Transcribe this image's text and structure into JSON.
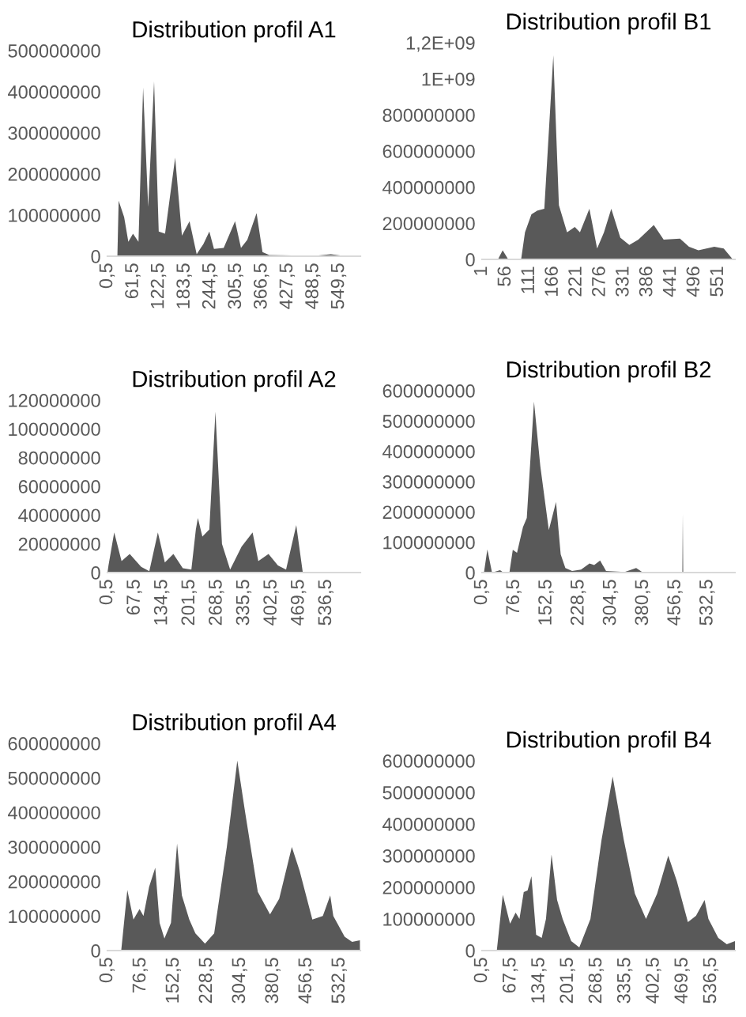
{
  "chart_data": [
    {
      "type": "area",
      "title": "Distribution profil A1",
      "color": "#595959",
      "xlim": [
        0.5,
        600
      ],
      "ylim": [
        0,
        500000000
      ],
      "yticks": [
        0,
        100000000,
        200000000,
        300000000,
        400000000,
        500000000
      ],
      "xticks": [
        {
          "value": 0.5,
          "label": "0,5"
        },
        {
          "value": 61.5,
          "label": "61,5"
        },
        {
          "value": 122.5,
          "label": "122,5"
        },
        {
          "value": 183.5,
          "label": "183,5"
        },
        {
          "value": 244.5,
          "label": "244,5"
        },
        {
          "value": 305.5,
          "label": "305,5"
        },
        {
          "value": 366.5,
          "label": "366,5"
        },
        {
          "value": 427.5,
          "label": "427,5"
        },
        {
          "value": 488.5,
          "label": "488,5"
        },
        {
          "value": 549.5,
          "label": "549,5"
        }
      ],
      "x": [
        0.5,
        24,
        27,
        40,
        50,
        61,
        74,
        85,
        97,
        111,
        122,
        137,
        161,
        177,
        195,
        212,
        228,
        242,
        253,
        276,
        303,
        317,
        332,
        354,
        368,
        384,
        491,
        530,
        560,
        600
      ],
      "values": [
        0,
        0,
        135000000,
        95000000,
        35000000,
        55000000,
        35000000,
        410000000,
        120000000,
        425000000,
        60000000,
        55000000,
        240000000,
        50000000,
        85000000,
        5000000,
        30000000,
        60000000,
        18000000,
        20000000,
        85000000,
        20000000,
        40000000,
        105000000,
        10000000,
        3000000,
        1000000,
        5000000,
        1000000,
        0
      ]
    },
    {
      "type": "area",
      "title": "Distribution profil B1",
      "color": "#595959",
      "xlim": [
        1,
        590
      ],
      "ylim": [
        0,
        1200000000
      ],
      "yticks": [
        0,
        200000000,
        400000000,
        600000000,
        800000000,
        {
          "value": 1000000000,
          "label": "1E+09"
        },
        {
          "value": 1200000000,
          "label": "1,2E+09"
        }
      ],
      "xticks": [
        1,
        56,
        111,
        166,
        221,
        276,
        331,
        386,
        441,
        496,
        551
      ],
      "x": [
        1,
        38,
        49,
        62,
        92,
        101,
        116,
        130,
        146,
        167,
        180,
        199,
        217,
        229,
        251,
        269,
        285,
        302,
        323,
        344,
        365,
        401,
        424,
        462,
        483,
        505,
        542,
        564,
        585,
        590
      ],
      "values": [
        0,
        0,
        50000000,
        0,
        0,
        150000000,
        250000000,
        270000000,
        280000000,
        1130000000,
        300000000,
        150000000,
        180000000,
        150000000,
        280000000,
        60000000,
        150000000,
        280000000,
        120000000,
        80000000,
        110000000,
        190000000,
        110000000,
        115000000,
        70000000,
        50000000,
        70000000,
        60000000,
        0,
        0
      ]
    },
    {
      "type": "area",
      "title": "Distribution profil A2",
      "color": "#595959",
      "xlim": [
        0.5,
        620
      ],
      "ylim": [
        0,
        120000000
      ],
      "yticks": [
        0,
        20000000,
        40000000,
        60000000,
        80000000,
        100000000,
        120000000
      ],
      "xticks": [
        {
          "value": 0.5,
          "label": "0,5"
        },
        {
          "value": 67.5,
          "label": "67,5"
        },
        {
          "value": 134.5,
          "label": "134,5"
        },
        {
          "value": 201.5,
          "label": "201,5"
        },
        {
          "value": 268.5,
          "label": "268,5"
        },
        {
          "value": 335.5,
          "label": "335,5"
        },
        {
          "value": 402.5,
          "label": "402,5"
        },
        {
          "value": 469.5,
          "label": "469,5"
        },
        {
          "value": 536.5,
          "label": "536,5"
        }
      ],
      "x": [
        0.5,
        3,
        17,
        35,
        55,
        83,
        103,
        124,
        141,
        162,
        185,
        206,
        217,
        222,
        233,
        250,
        265,
        281,
        301,
        329,
        356,
        370,
        395,
        418,
        438,
        463,
        479,
        620
      ],
      "values": [
        0,
        5000000,
        28000000,
        8000000,
        13000000,
        4000000,
        1000000,
        28000000,
        7000000,
        13000000,
        3000000,
        2000000,
        30000000,
        38000000,
        25000000,
        30000000,
        112000000,
        20000000,
        2000000,
        18000000,
        28000000,
        8000000,
        13000000,
        5000000,
        2000000,
        33000000,
        0,
        0
      ]
    },
    {
      "type": "area",
      "title": "Distribution profil B2",
      "color": "#595959",
      "xlim": [
        0.5,
        597
      ],
      "ylim": [
        0,
        600000000
      ],
      "yticks": [
        0,
        100000000,
        200000000,
        300000000,
        400000000,
        500000000,
        600000000
      ],
      "xticks": [
        {
          "value": 0.5,
          "label": "0,5"
        },
        {
          "value": 76.5,
          "label": "76,5"
        },
        {
          "value": 152.5,
          "label": "152,5"
        },
        {
          "value": 228.5,
          "label": "228,5"
        },
        {
          "value": 304.5,
          "label": "304,5"
        },
        {
          "value": 380.5,
          "label": "380,5"
        },
        {
          "value": 456.5,
          "label": "456,5"
        },
        {
          "value": 532.5,
          "label": "532,5"
        }
      ],
      "x": [
        0.5,
        5,
        13,
        24,
        43,
        51,
        65,
        73,
        83,
        97,
        106,
        123,
        138,
        158,
        175,
        186,
        197,
        213,
        234,
        254,
        265,
        279,
        293,
        337,
        364,
        378,
        433,
        473,
        474,
        475,
        597
      ],
      "values": [
        0,
        0,
        76000000,
        0,
        8000000,
        0,
        0,
        75000000,
        65000000,
        150000000,
        180000000,
        564000000,
        350000000,
        140000000,
        233000000,
        60000000,
        15000000,
        5000000,
        10000000,
        30000000,
        25000000,
        40000000,
        5000000,
        2000000,
        15000000,
        2000000,
        0,
        0,
        193000000,
        0,
        0
      ]
    },
    {
      "type": "area",
      "title": "Distribution profil A4",
      "color": "#595959",
      "xlim": [
        0.5,
        580
      ],
      "ylim": [
        0,
        600000000
      ],
      "yticks": [
        0,
        100000000,
        200000000,
        300000000,
        400000000,
        500000000,
        600000000
      ],
      "xticks": [
        {
          "value": 0.5,
          "label": "0,5"
        },
        {
          "value": 76.5,
          "label": "76,5"
        },
        {
          "value": 152.5,
          "label": "152,5"
        },
        {
          "value": 228.5,
          "label": "228,5"
        },
        {
          "value": 304.5,
          "label": "304,5"
        },
        {
          "value": 380.5,
          "label": "380,5"
        },
        {
          "value": 456.5,
          "label": "456,5"
        },
        {
          "value": 532.5,
          "label": "532,5"
        }
      ],
      "x": [
        0.5,
        32,
        46,
        60,
        74,
        83,
        96,
        110,
        120,
        131,
        146,
        160,
        171,
        188,
        202,
        224,
        245,
        274,
        298,
        316,
        345,
        373,
        394,
        423,
        441,
        470,
        494,
        511,
        518,
        544,
        561,
        579
      ],
      "values": [
        0,
        0,
        175000000,
        90000000,
        120000000,
        100000000,
        185000000,
        240000000,
        80000000,
        35000000,
        80000000,
        310000000,
        160000000,
        90000000,
        50000000,
        20000000,
        50000000,
        300000000,
        550000000,
        400000000,
        170000000,
        105000000,
        150000000,
        300000000,
        230000000,
        90000000,
        100000000,
        160000000,
        100000000,
        40000000,
        25000000,
        30000000
      ]
    },
    {
      "type": "area",
      "title": "Distribution profil B4",
      "color": "#595959",
      "xlim": [
        0.5,
        592
      ],
      "ylim": [
        0,
        600000000
      ],
      "yticks": [
        0,
        100000000,
        200000000,
        300000000,
        400000000,
        500000000,
        600000000
      ],
      "xticks": [
        {
          "value": 0.5,
          "label": "0,5"
        },
        {
          "value": 67.5,
          "label": "67,5"
        },
        {
          "value": 134.5,
          "label": "134,5"
        },
        {
          "value": 201.5,
          "label": "201,5"
        },
        {
          "value": 268.5,
          "label": "268,5"
        },
        {
          "value": 335.5,
          "label": "335,5"
        },
        {
          "value": 402.5,
          "label": "402,5"
        },
        {
          "value": 469.5,
          "label": "469,5"
        },
        {
          "value": 536.5,
          "label": "536,5"
        }
      ],
      "x": [
        0.5,
        35,
        49,
        66,
        79,
        88,
        98,
        107,
        116,
        127,
        140,
        150,
        163,
        176,
        189,
        209,
        228,
        254,
        280,
        306,
        332,
        358,
        384,
        410,
        436,
        456,
        482,
        501,
        521,
        530,
        553,
        573,
        592
      ],
      "values": [
        0,
        0,
        176000000,
        85000000,
        120000000,
        100000000,
        185000000,
        190000000,
        235000000,
        50000000,
        40000000,
        100000000,
        304000000,
        160000000,
        100000000,
        30000000,
        10000000,
        100000000,
        350000000,
        550000000,
        350000000,
        180000000,
        100000000,
        180000000,
        300000000,
        220000000,
        90000000,
        110000000,
        160000000,
        100000000,
        40000000,
        20000000,
        30000000
      ]
    }
  ]
}
